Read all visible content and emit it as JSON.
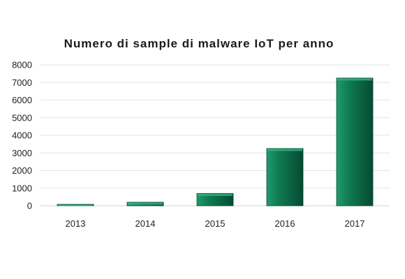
{
  "chart_data": {
    "type": "bar",
    "title": "Numero di sample di malware IoT per anno",
    "xlabel": "",
    "ylabel": "",
    "categories": [
      "2013",
      "2014",
      "2015",
      "2016",
      "2017"
    ],
    "values": [
      50,
      200,
      700,
      3250,
      7250
    ],
    "ylim": [
      0,
      8000
    ],
    "yticks": [
      "0",
      "1000",
      "2000",
      "3000",
      "4000",
      "5000",
      "6000",
      "7000",
      "8000"
    ],
    "grid": true,
    "legend": "none",
    "colors": {
      "bar_light": "#1f9a6c",
      "bar_mid": "#0f7a52",
      "bar_dark": "#064a32",
      "bar_top": "#34b585"
    }
  }
}
